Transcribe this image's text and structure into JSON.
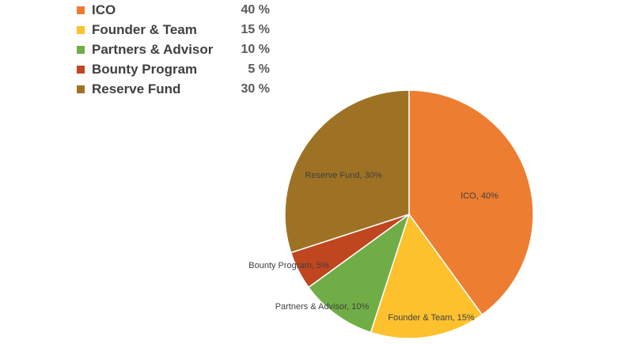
{
  "chart_data": {
    "type": "pie",
    "categories": [
      "ICO",
      "Founder & Team",
      "Partners & Advisor",
      "Bounty Program",
      "Reserve Fund"
    ],
    "values": [
      40,
      15,
      10,
      5,
      30
    ],
    "unit": "%",
    "legend_values": [
      "40 %",
      "15 %",
      "10 %",
      "5 %",
      "30 %"
    ],
    "slice_labels": [
      "ICO, 40%",
      "Founder & Team, 15%",
      "Partners & Advisor, 10%",
      "Bounty Program, 5%",
      "Reserve Fund, 30%"
    ],
    "colors": [
      "#ED7D31",
      "#FDC12E",
      "#70AD47",
      "#C0461F",
      "#9E7224"
    ],
    "legend_placement": "top-left",
    "start_angle_deg": 0,
    "direction": "clockwise"
  }
}
